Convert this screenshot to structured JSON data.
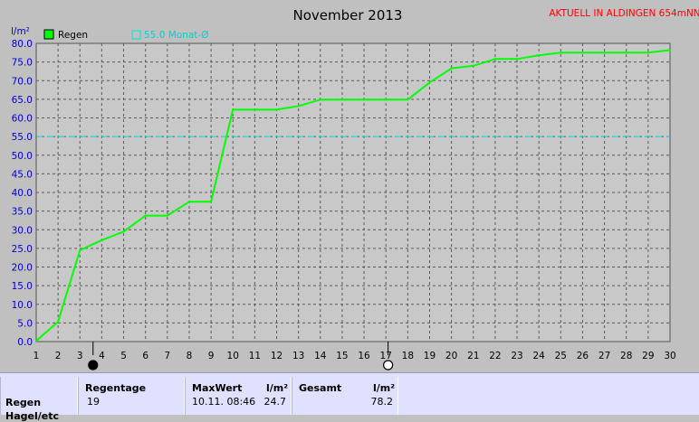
{
  "header": {
    "title": "November 2013",
    "station": "AKTUELL IN ALDINGEN 654mNN"
  },
  "colors": {
    "background": "#c0c0c0",
    "plot_area": "#c8c8c8",
    "rain_line": "#00ff00",
    "reference_line": "#00e0e0",
    "title_text": "#000000",
    "station_text": "#ff0000",
    "axis_text": "#0000cc",
    "stats_panel": "#e0e0ff"
  },
  "chart_data": {
    "type": "line",
    "title": "November 2013",
    "ylabel": "l/m²",
    "xlabel": "",
    "xlim": [
      1,
      30
    ],
    "ylim": [
      0,
      80
    ],
    "x_ticks": [
      1,
      2,
      3,
      4,
      5,
      6,
      7,
      8,
      9,
      10,
      11,
      12,
      13,
      14,
      15,
      16,
      17,
      18,
      19,
      20,
      21,
      22,
      23,
      24,
      25,
      26,
      27,
      28,
      29,
      30
    ],
    "y_ticks": [
      "0.0",
      "5.0",
      "10.0",
      "15.0",
      "20.0",
      "25.0",
      "30.0",
      "35.0",
      "40.0",
      "45.0",
      "50.0",
      "55.0",
      "60.0",
      "65.0",
      "70.0",
      "75.0",
      "80.0"
    ],
    "grid": true,
    "legend_position": "top-left",
    "series": [
      {
        "name": "Regen",
        "color": "#00ff00",
        "points": [
          [
            1,
            0.2
          ],
          [
            2,
            5.3
          ],
          [
            3,
            24.5
          ],
          [
            4,
            27.2
          ],
          [
            5,
            29.5
          ],
          [
            6,
            33.8
          ],
          [
            7,
            33.8
          ],
          [
            8,
            37.5
          ],
          [
            9,
            37.5
          ],
          [
            10,
            62.2
          ],
          [
            11,
            62.2
          ],
          [
            12,
            62.2
          ],
          [
            13,
            63.2
          ],
          [
            14,
            64.9
          ],
          [
            15,
            64.9
          ],
          [
            16,
            64.9
          ],
          [
            17,
            64.9
          ],
          [
            18,
            64.9
          ],
          [
            19,
            69.5
          ],
          [
            20,
            73.3
          ],
          [
            21,
            74.0
          ],
          [
            22,
            75.8
          ],
          [
            23,
            75.8
          ],
          [
            24,
            76.8
          ],
          [
            25,
            77.5
          ],
          [
            26,
            77.5
          ],
          [
            27,
            77.5
          ],
          [
            28,
            77.5
          ],
          [
            29,
            77.5
          ],
          [
            30,
            78.2
          ]
        ]
      }
    ],
    "reference_lines": [
      {
        "name": "55.0 Monat-Ø",
        "value": 55.0,
        "color": "#00e0e0",
        "style": "dashed"
      }
    ],
    "moon_markers": [
      {
        "x": 3.6,
        "phase": "new-moon"
      },
      {
        "x": 17.1,
        "phase": "full-moon"
      }
    ]
  },
  "stats": {
    "row_label": "Regen",
    "row_label_2": "Hagel/etc",
    "regentage_header": "Regentage",
    "regentage_value": "19",
    "maxwert_header": "MaxWert",
    "maxwert_unit": "l/m²",
    "maxwert_time": "10.11.  08:46",
    "maxwert_value": "24.7",
    "gesamt_header": "Gesamt",
    "gesamt_unit": "l/m²",
    "gesamt_value": "78.2"
  }
}
